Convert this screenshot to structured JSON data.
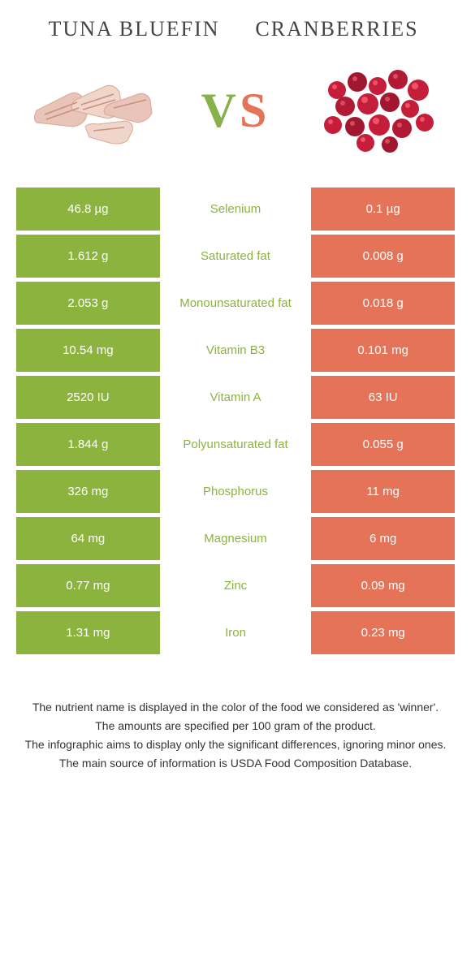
{
  "food_left": {
    "name": "Tuna Bluefin",
    "color": "#8db33f"
  },
  "food_right": {
    "name": "Cranberries",
    "color": "#e57358"
  },
  "vs": {
    "v": "V",
    "s": "S",
    "v_color": "#8db33f",
    "s_color": "#e57358"
  },
  "nutrient_label_color": "#8db33f",
  "rows": [
    {
      "nutrient": "Selenium",
      "left": "46.8 µg",
      "right": "0.1 µg",
      "winner": "left"
    },
    {
      "nutrient": "Saturated fat",
      "left": "1.612 g",
      "right": "0.008 g",
      "winner": "left"
    },
    {
      "nutrient": "Monounsaturated fat",
      "left": "2.053 g",
      "right": "0.018 g",
      "winner": "left"
    },
    {
      "nutrient": "Vitamin B3",
      "left": "10.54 mg",
      "right": "0.101 mg",
      "winner": "left"
    },
    {
      "nutrient": "Vitamin A",
      "left": "2520 IU",
      "right": "63 IU",
      "winner": "left"
    },
    {
      "nutrient": "Polyunsaturated fat",
      "left": "1.844 g",
      "right": "0.055 g",
      "winner": "left"
    },
    {
      "nutrient": "Phosphorus",
      "left": "326 mg",
      "right": "11 mg",
      "winner": "left"
    },
    {
      "nutrient": "Magnesium",
      "left": "64 mg",
      "right": "6 mg",
      "winner": "left"
    },
    {
      "nutrient": "Zinc",
      "left": "0.77 mg",
      "right": "0.09 mg",
      "winner": "left"
    },
    {
      "nutrient": "Iron",
      "left": "1.31 mg",
      "right": "0.23 mg",
      "winner": "left"
    }
  ],
  "footer": {
    "line1": "The nutrient name is displayed in the color of the food we considered as 'winner'.",
    "line2": "The amounts are specified per 100 gram of the product.",
    "line3": "The infographic aims to display only the significant differences, ignoring minor ones.",
    "line4": "The main source of information is USDA Food Composition Database."
  },
  "tuna_illustration": {
    "fill_main": "#e8c5b8",
    "fill_light": "#f0d5ca",
    "fill_dark": "#d8a896",
    "stripe": "#c89080"
  },
  "cran_illustration": {
    "berry_red": "#c41e3a",
    "berry_dark": "#8b0020",
    "highlight": "#ffffff"
  }
}
